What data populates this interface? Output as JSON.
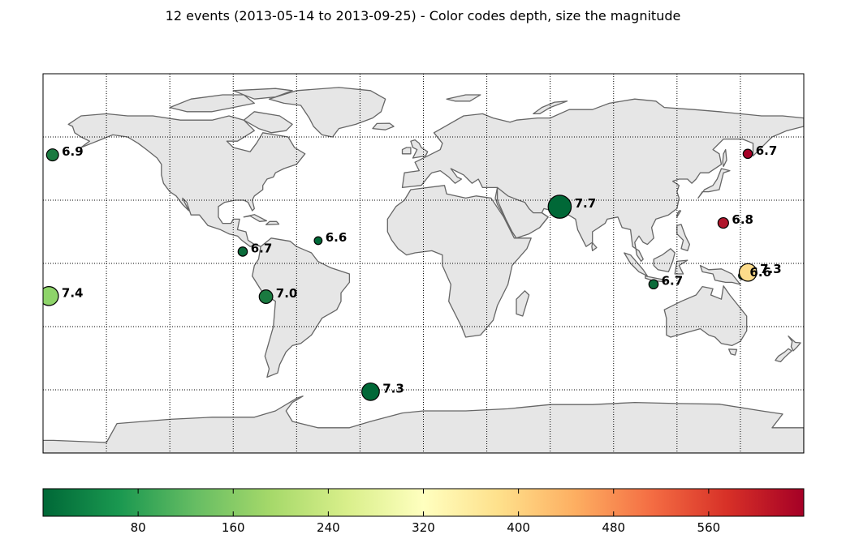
{
  "title": "12 events (2013-05-14 to 2013-09-25) - Color codes depth, size the magnitude",
  "colorbar": {
    "min": 0,
    "max": 640,
    "ticks": [
      "80",
      "160",
      "240",
      "320",
      "400",
      "480",
      "560"
    ],
    "colormap": [
      "#006837",
      "#1a9850",
      "#66bd63",
      "#a6d96a",
      "#d9ef8b",
      "#ffffbf",
      "#fee08b",
      "#fdae61",
      "#f46d43",
      "#d73027",
      "#a50026"
    ]
  },
  "map": {
    "projection": "cylindrical",
    "lon_range": [
      -180,
      180
    ],
    "lat_range": [
      -90,
      90
    ],
    "meridians": [
      -150,
      -120,
      -90,
      -60,
      -30,
      0,
      30,
      60,
      90,
      120,
      150
    ],
    "parallels": [
      -60,
      -30,
      0,
      30,
      60
    ],
    "land_color": "#e6e6e6",
    "coast_color": "#666666",
    "ocean_color": "#ffffff"
  },
  "chart_data": {
    "type": "scatter",
    "events": [
      {
        "lon": -175.5,
        "lat": 51.5,
        "mag": "6.9",
        "depth": 30,
        "color": "#1a7a40"
      },
      {
        "lon": -177.2,
        "lat": -15.5,
        "mag": "7.4",
        "depth": 180,
        "color": "#8ed46a"
      },
      {
        "lon": -85.5,
        "lat": 5.6,
        "mag": "6.7",
        "depth": 20,
        "color": "#0a6b3a"
      },
      {
        "lon": -49.8,
        "lat": 10.8,
        "mag": "6.6",
        "depth": 10,
        "color": "#006837"
      },
      {
        "lon": -74.5,
        "lat": -15.8,
        "mag": "7.0",
        "depth": 40,
        "color": "#1a7a40"
      },
      {
        "lon": -25.0,
        "lat": -60.9,
        "mag": "7.3",
        "depth": 10,
        "color": "#006837"
      },
      {
        "lon": 64.5,
        "lat": 26.9,
        "mag": "7.7",
        "depth": 15,
        "color": "#006837"
      },
      {
        "lon": 153.5,
        "lat": 52.0,
        "mag": "6.7",
        "depth": 620,
        "color": "#a50026"
      },
      {
        "lon": 141.9,
        "lat": 19.2,
        "mag": "6.8",
        "depth": 600,
        "color": "#b0162c"
      },
      {
        "lon": 108.9,
        "lat": -9.9,
        "mag": "6.7",
        "depth": 30,
        "color": "#0a6b3a"
      },
      {
        "lon": 151.0,
        "lat": -5.8,
        "mag": "6.6",
        "depth": 60,
        "color": "#1a9850"
      },
      {
        "lon": 153.6,
        "lat": -4.3,
        "mag": "7.3",
        "depth": 380,
        "color": "#fddc8b"
      }
    ]
  }
}
